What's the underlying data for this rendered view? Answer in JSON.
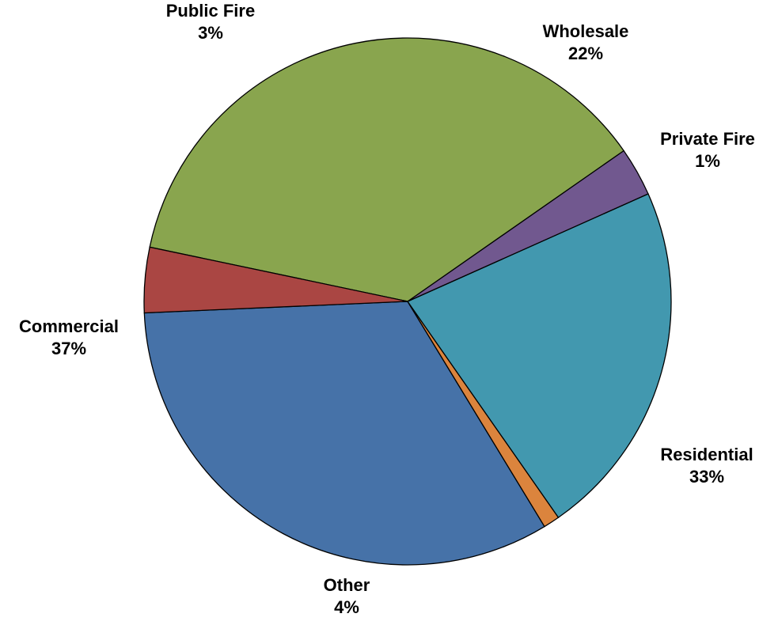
{
  "chart_data": {
    "type": "pie",
    "start_angle_deg": 182.5,
    "direction": "counterclockwise",
    "slices": [
      {
        "name": "Residential",
        "value": 33,
        "label": "33%",
        "color": "#4672A8"
      },
      {
        "name": "Private Fire",
        "value": 1,
        "label": "1%",
        "color": "#DB843D"
      },
      {
        "name": "Wholesale",
        "value": 22,
        "label": "22%",
        "color": "#4298AF"
      },
      {
        "name": "Public Fire",
        "value": 3,
        "label": "3%",
        "color": "#71588F"
      },
      {
        "name": "Commercial",
        "value": 37,
        "label": "37%",
        "color": "#89A54E"
      },
      {
        "name": "Other",
        "value": 4,
        "label": "4%",
        "color": "#AA4643"
      }
    ]
  }
}
